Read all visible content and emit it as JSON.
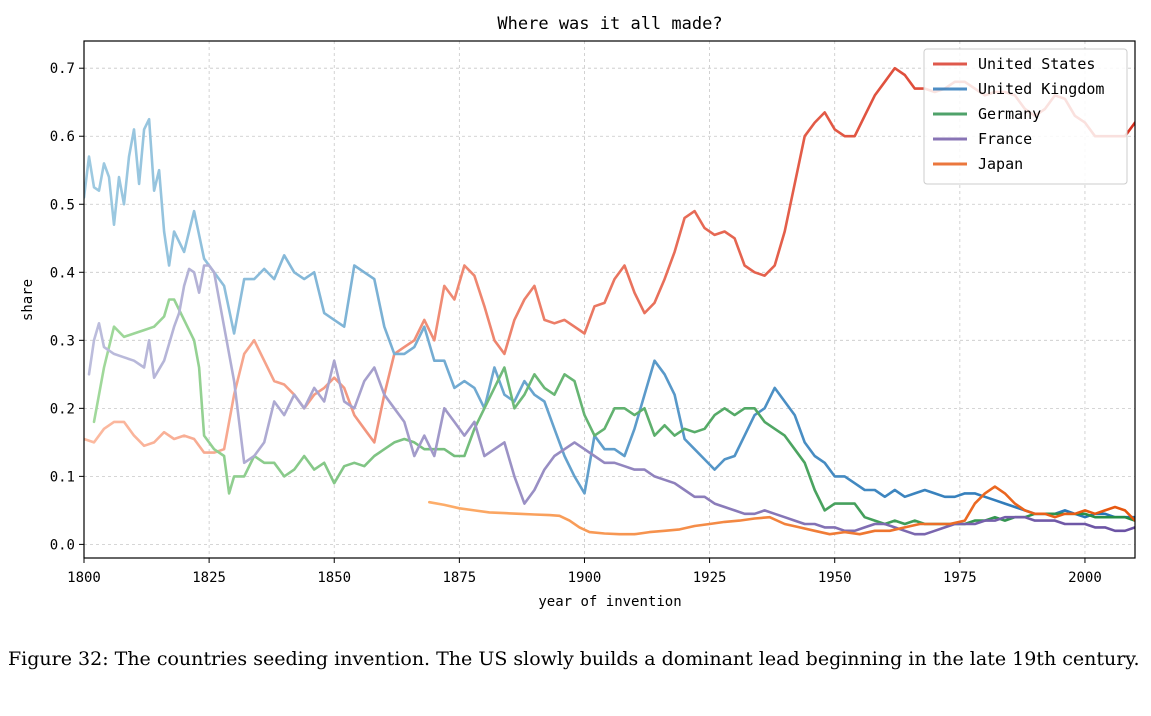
{
  "caption": "Figure 32: The countries seeding invention. The US slowly builds a dominant lead beginning in the late 19th century.",
  "chart_data": {
    "type": "line",
    "title": "Where was it all made?",
    "xlabel": "year of invention",
    "ylabel": "share",
    "xlim": [
      1800,
      2010
    ],
    "ylim": [
      -0.02,
      0.74
    ],
    "xticks": [
      1800,
      1825,
      1850,
      1875,
      1900,
      1925,
      1950,
      1975,
      2000
    ],
    "yticks": [
      0.0,
      0.1,
      0.2,
      0.3,
      0.4,
      0.5,
      0.6,
      0.7
    ],
    "ytick_labels": [
      "0.0",
      "0.1",
      "0.2",
      "0.3",
      "0.4",
      "0.5",
      "0.6",
      "0.7"
    ],
    "grid": true,
    "legend_position": "top-right",
    "series": [
      {
        "name": "United States",
        "color_light": "#fcbba1",
        "color_dark": "#d7301f",
        "x": [
          1800,
          1802,
          1804,
          1806,
          1808,
          1810,
          1812,
          1814,
          1816,
          1818,
          1820,
          1822,
          1824,
          1826,
          1828,
          1830,
          1832,
          1834,
          1836,
          1838,
          1840,
          1842,
          1844,
          1846,
          1848,
          1850,
          1852,
          1854,
          1856,
          1858,
          1860,
          1862,
          1864,
          1866,
          1868,
          1870,
          1872,
          1874,
          1876,
          1878,
          1880,
          1882,
          1884,
          1886,
          1888,
          1890,
          1892,
          1894,
          1896,
          1898,
          1900,
          1902,
          1904,
          1906,
          1908,
          1910,
          1912,
          1914,
          1916,
          1918,
          1920,
          1922,
          1924,
          1926,
          1928,
          1930,
          1932,
          1934,
          1936,
          1938,
          1940,
          1942,
          1944,
          1946,
          1948,
          1950,
          1952,
          1954,
          1956,
          1958,
          1960,
          1962,
          1964,
          1966,
          1968,
          1970,
          1972,
          1974,
          1976,
          1978,
          1980,
          1982,
          1984,
          1986,
          1988,
          1990,
          1992,
          1994,
          1996,
          1998,
          2000,
          2002,
          2004,
          2006,
          2008,
          2010
        ],
        "y": [
          0.155,
          0.15,
          0.17,
          0.18,
          0.18,
          0.16,
          0.145,
          0.15,
          0.165,
          0.155,
          0.16,
          0.155,
          0.135,
          0.135,
          0.14,
          0.22,
          0.28,
          0.3,
          0.27,
          0.24,
          0.235,
          0.22,
          0.2,
          0.22,
          0.23,
          0.245,
          0.23,
          0.19,
          0.17,
          0.15,
          0.22,
          0.28,
          0.29,
          0.3,
          0.33,
          0.3,
          0.38,
          0.36,
          0.41,
          0.395,
          0.35,
          0.3,
          0.28,
          0.33,
          0.36,
          0.38,
          0.33,
          0.325,
          0.33,
          0.32,
          0.31,
          0.35,
          0.355,
          0.39,
          0.41,
          0.37,
          0.34,
          0.355,
          0.39,
          0.43,
          0.48,
          0.49,
          0.465,
          0.455,
          0.46,
          0.45,
          0.41,
          0.4,
          0.395,
          0.41,
          0.46,
          0.53,
          0.6,
          0.62,
          0.635,
          0.61,
          0.6,
          0.6,
          0.63,
          0.66,
          0.68,
          0.7,
          0.69,
          0.67,
          0.67,
          0.665,
          0.67,
          0.68,
          0.68,
          0.67,
          0.66,
          0.665,
          0.665,
          0.66,
          0.64,
          0.63,
          0.64,
          0.66,
          0.655,
          0.63,
          0.62,
          0.6,
          0.6,
          0.6,
          0.6,
          0.62
        ]
      },
      {
        "name": "United Kingdom",
        "color_light": "#9ecae1",
        "color_dark": "#2171b5",
        "x": [
          1800,
          1801,
          1802,
          1803,
          1804,
          1805,
          1806,
          1807,
          1808,
          1809,
          1810,
          1811,
          1812,
          1813,
          1814,
          1815,
          1816,
          1817,
          1818,
          1820,
          1822,
          1824,
          1826,
          1828,
          1830,
          1832,
          1834,
          1836,
          1838,
          1840,
          1842,
          1844,
          1846,
          1848,
          1850,
          1852,
          1854,
          1856,
          1858,
          1860,
          1862,
          1864,
          1866,
          1868,
          1870,
          1872,
          1874,
          1876,
          1878,
          1880,
          1882,
          1884,
          1886,
          1888,
          1890,
          1892,
          1894,
          1896,
          1898,
          1900,
          1902,
          1904,
          1906,
          1908,
          1910,
          1912,
          1914,
          1916,
          1918,
          1920,
          1922,
          1924,
          1926,
          1928,
          1930,
          1932,
          1934,
          1936,
          1938,
          1940,
          1942,
          1944,
          1946,
          1948,
          1950,
          1952,
          1954,
          1956,
          1958,
          1960,
          1962,
          1964,
          1966,
          1968,
          1970,
          1972,
          1974,
          1976,
          1978,
          1980,
          1982,
          1984,
          1986,
          1988,
          1990,
          1992,
          1994,
          1996,
          1998,
          2000,
          2002,
          2004,
          2006,
          2008,
          2010
        ],
        "y": [
          0.51,
          0.57,
          0.525,
          0.52,
          0.56,
          0.54,
          0.47,
          0.54,
          0.5,
          0.57,
          0.61,
          0.53,
          0.61,
          0.625,
          0.52,
          0.55,
          0.46,
          0.41,
          0.46,
          0.43,
          0.49,
          0.42,
          0.4,
          0.38,
          0.31,
          0.39,
          0.39,
          0.405,
          0.39,
          0.425,
          0.4,
          0.39,
          0.4,
          0.34,
          0.33,
          0.32,
          0.41,
          0.4,
          0.39,
          0.32,
          0.28,
          0.28,
          0.29,
          0.32,
          0.27,
          0.27,
          0.23,
          0.24,
          0.23,
          0.2,
          0.26,
          0.22,
          0.21,
          0.24,
          0.22,
          0.21,
          0.17,
          0.13,
          0.1,
          0.075,
          0.16,
          0.14,
          0.14,
          0.13,
          0.17,
          0.22,
          0.27,
          0.25,
          0.22,
          0.155,
          0.14,
          0.125,
          0.11,
          0.125,
          0.13,
          0.16,
          0.19,
          0.2,
          0.23,
          0.21,
          0.19,
          0.15,
          0.13,
          0.12,
          0.1,
          0.1,
          0.09,
          0.08,
          0.08,
          0.07,
          0.08,
          0.07,
          0.075,
          0.08,
          0.075,
          0.07,
          0.07,
          0.075,
          0.075,
          0.07,
          0.065,
          0.06,
          0.055,
          0.05,
          0.045,
          0.045,
          0.045,
          0.05,
          0.045,
          0.04,
          0.045,
          0.045,
          0.04,
          0.04,
          0.04
        ]
      },
      {
        "name": "Germany",
        "color_light": "#a1d99b",
        "color_dark": "#238b45",
        "x": [
          1802,
          1804,
          1806,
          1808,
          1810,
          1812,
          1814,
          1816,
          1817,
          1818,
          1820,
          1822,
          1823,
          1824,
          1826,
          1828,
          1829,
          1830,
          1832,
          1834,
          1836,
          1838,
          1840,
          1842,
          1844,
          1846,
          1848,
          1850,
          1852,
          1854,
          1856,
          1858,
          1860,
          1862,
          1864,
          1866,
          1868,
          1870,
          1872,
          1874,
          1876,
          1878,
          1880,
          1882,
          1884,
          1886,
          1888,
          1890,
          1892,
          1894,
          1896,
          1898,
          1900,
          1902,
          1904,
          1906,
          1908,
          1910,
          1912,
          1914,
          1916,
          1918,
          1920,
          1922,
          1924,
          1926,
          1928,
          1930,
          1932,
          1934,
          1936,
          1938,
          1940,
          1942,
          1944,
          1946,
          1948,
          1950,
          1952,
          1954,
          1956,
          1958,
          1960,
          1962,
          1964,
          1966,
          1968,
          1970,
          1972,
          1974,
          1976,
          1978,
          1980,
          1982,
          1984,
          1986,
          1988,
          1990,
          1992,
          1994,
          1996,
          1998,
          2000,
          2002,
          2004,
          2006,
          2008,
          2010
        ],
        "y": [
          0.18,
          0.26,
          0.32,
          0.305,
          0.31,
          0.315,
          0.32,
          0.335,
          0.36,
          0.36,
          0.33,
          0.3,
          0.26,
          0.16,
          0.14,
          0.13,
          0.075,
          0.1,
          0.1,
          0.13,
          0.12,
          0.12,
          0.1,
          0.11,
          0.13,
          0.11,
          0.12,
          0.09,
          0.115,
          0.12,
          0.115,
          0.13,
          0.14,
          0.15,
          0.155,
          0.15,
          0.14,
          0.14,
          0.14,
          0.13,
          0.13,
          0.17,
          0.2,
          0.23,
          0.26,
          0.2,
          0.22,
          0.25,
          0.23,
          0.22,
          0.25,
          0.24,
          0.19,
          0.16,
          0.17,
          0.2,
          0.2,
          0.19,
          0.2,
          0.16,
          0.175,
          0.16,
          0.17,
          0.165,
          0.17,
          0.19,
          0.2,
          0.19,
          0.2,
          0.2,
          0.18,
          0.17,
          0.16,
          0.14,
          0.12,
          0.08,
          0.05,
          0.06,
          0.06,
          0.06,
          0.04,
          0.035,
          0.03,
          0.035,
          0.03,
          0.035,
          0.03,
          0.03,
          0.03,
          0.03,
          0.03,
          0.035,
          0.035,
          0.04,
          0.035,
          0.04,
          0.04,
          0.045,
          0.045,
          0.045,
          0.045,
          0.045,
          0.045,
          0.04,
          0.04,
          0.04,
          0.04,
          0.035
        ]
      },
      {
        "name": "France",
        "color_light": "#bcbddc",
        "color_dark": "#6a51a3",
        "x": [
          1801,
          1802,
          1803,
          1804,
          1806,
          1808,
          1810,
          1812,
          1813,
          1814,
          1816,
          1818,
          1819,
          1820,
          1821,
          1822,
          1823,
          1824,
          1825,
          1826,
          1828,
          1830,
          1832,
          1834,
          1836,
          1838,
          1840,
          1842,
          1844,
          1846,
          1848,
          1850,
          1852,
          1854,
          1856,
          1858,
          1860,
          1862,
          1864,
          1866,
          1868,
          1870,
          1872,
          1874,
          1876,
          1878,
          1880,
          1882,
          1884,
          1886,
          1888,
          1890,
          1892,
          1894,
          1896,
          1898,
          1900,
          1902,
          1904,
          1906,
          1908,
          1910,
          1912,
          1914,
          1916,
          1918,
          1920,
          1922,
          1924,
          1926,
          1928,
          1930,
          1932,
          1934,
          1936,
          1938,
          1940,
          1942,
          1944,
          1946,
          1948,
          1950,
          1952,
          1954,
          1956,
          1958,
          1960,
          1962,
          1964,
          1966,
          1968,
          1970,
          1972,
          1974,
          1976,
          1978,
          1980,
          1982,
          1984,
          1986,
          1988,
          1990,
          1992,
          1994,
          1996,
          1998,
          2000,
          2002,
          2004,
          2006,
          2008,
          2010
        ],
        "y": [
          0.25,
          0.3,
          0.325,
          0.29,
          0.28,
          0.275,
          0.27,
          0.26,
          0.3,
          0.245,
          0.27,
          0.32,
          0.34,
          0.38,
          0.405,
          0.4,
          0.37,
          0.41,
          0.41,
          0.4,
          0.32,
          0.24,
          0.12,
          0.13,
          0.15,
          0.21,
          0.19,
          0.22,
          0.2,
          0.23,
          0.21,
          0.27,
          0.21,
          0.2,
          0.24,
          0.26,
          0.22,
          0.2,
          0.18,
          0.13,
          0.16,
          0.13,
          0.2,
          0.18,
          0.16,
          0.18,
          0.13,
          0.14,
          0.15,
          0.1,
          0.06,
          0.08,
          0.11,
          0.13,
          0.14,
          0.15,
          0.14,
          0.13,
          0.12,
          0.12,
          0.115,
          0.11,
          0.11,
          0.1,
          0.095,
          0.09,
          0.08,
          0.07,
          0.07,
          0.06,
          0.055,
          0.05,
          0.045,
          0.045,
          0.05,
          0.045,
          0.04,
          0.035,
          0.03,
          0.03,
          0.025,
          0.025,
          0.02,
          0.02,
          0.025,
          0.03,
          0.03,
          0.025,
          0.02,
          0.015,
          0.015,
          0.02,
          0.025,
          0.03,
          0.03,
          0.03,
          0.035,
          0.035,
          0.04,
          0.04,
          0.04,
          0.035,
          0.035,
          0.035,
          0.03,
          0.03,
          0.03,
          0.025,
          0.025,
          0.02,
          0.02,
          0.025
        ]
      },
      {
        "name": "Japan",
        "color_light": "#fdae6b",
        "color_dark": "#e6550d",
        "x": [
          1869,
          1872,
          1875,
          1878,
          1881,
          1884,
          1887,
          1890,
          1893,
          1895,
          1897,
          1899,
          1901,
          1904,
          1907,
          1910,
          1913,
          1916,
          1919,
          1922,
          1925,
          1928,
          1931,
          1934,
          1937,
          1940,
          1943,
          1946,
          1949,
          1952,
          1955,
          1958,
          1961,
          1964,
          1967,
          1970,
          1973,
          1976,
          1978,
          1980,
          1982,
          1984,
          1986,
          1988,
          1990,
          1992,
          1994,
          1996,
          1998,
          2000,
          2002,
          2004,
          2006,
          2008,
          2010
        ],
        "y": [
          0.062,
          0.058,
          0.053,
          0.05,
          0.047,
          0.046,
          0.045,
          0.044,
          0.043,
          0.042,
          0.035,
          0.025,
          0.018,
          0.016,
          0.015,
          0.015,
          0.018,
          0.02,
          0.022,
          0.027,
          0.03,
          0.033,
          0.035,
          0.038,
          0.04,
          0.03,
          0.025,
          0.02,
          0.015,
          0.018,
          0.015,
          0.02,
          0.02,
          0.025,
          0.03,
          0.03,
          0.03,
          0.035,
          0.06,
          0.075,
          0.085,
          0.075,
          0.06,
          0.05,
          0.045,
          0.045,
          0.04,
          0.045,
          0.045,
          0.05,
          0.045,
          0.05,
          0.055,
          0.05,
          0.035
        ]
      }
    ]
  }
}
